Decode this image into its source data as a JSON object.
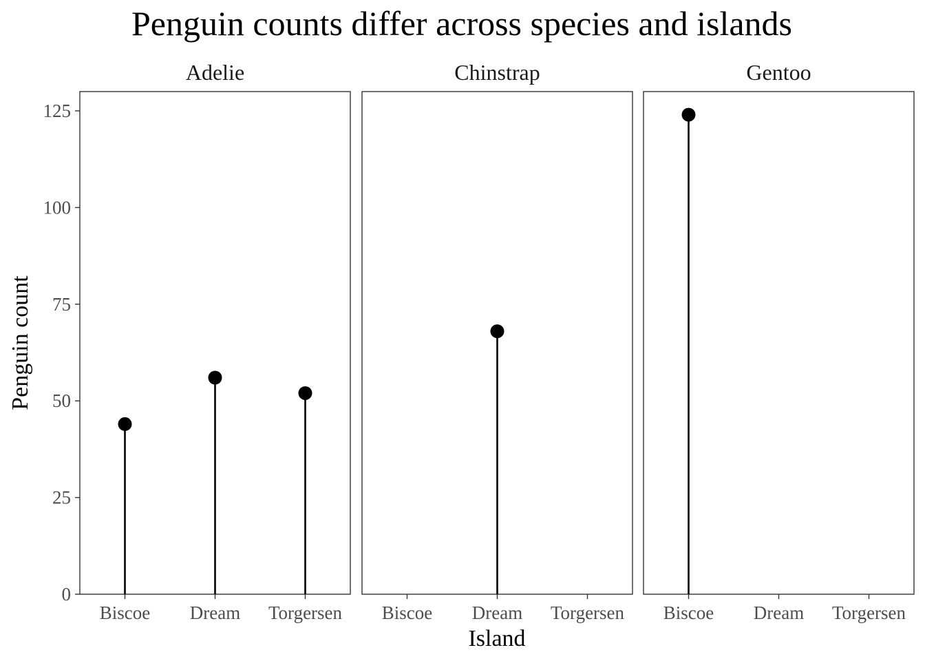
{
  "chart_data": {
    "type": "lollipop",
    "title": "Penguin counts differ across species and islands",
    "xlabel": "Island",
    "ylabel": "Penguin count",
    "categories": [
      "Biscoe",
      "Dream",
      "Torgersen"
    ],
    "ylim": [
      0,
      130
    ],
    "yticks": [
      0,
      25,
      50,
      75,
      100,
      125
    ],
    "grid": false,
    "legend": "none",
    "facets": [
      {
        "name": "Adelie",
        "values": [
          44,
          56,
          52
        ]
      },
      {
        "name": "Chinstrap",
        "values": [
          null,
          68,
          null
        ]
      },
      {
        "name": "Gentoo",
        "values": [
          124,
          null,
          null
        ]
      }
    ]
  }
}
